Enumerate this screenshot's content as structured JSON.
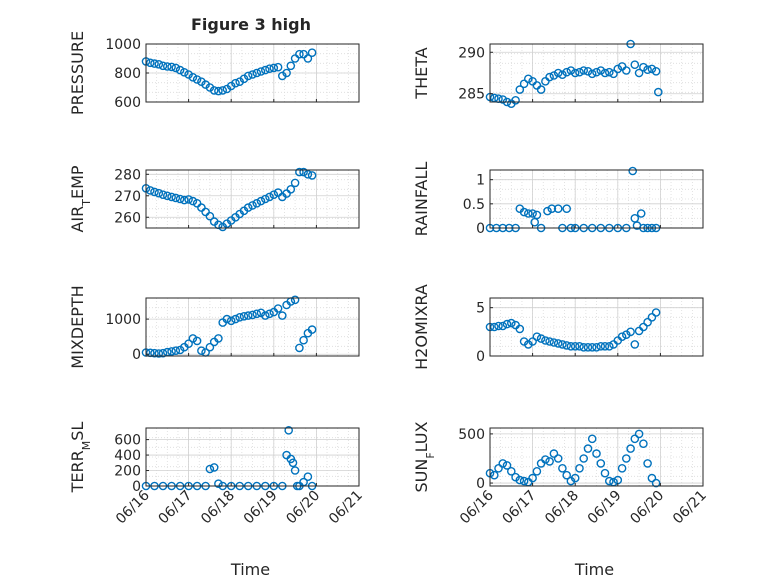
{
  "figure": {
    "title": "Figure 3 high",
    "xlabel": "Time",
    "x_tick_labels": [
      "06/16",
      "06/17",
      "06/18",
      "06/19",
      "06/20",
      "06/21"
    ]
  },
  "chart_data": [
    {
      "type": "scatter",
      "ylabel": "PRESSURE",
      "xlim": [
        0,
        5
      ],
      "ylim": [
        600,
        1000
      ],
      "yticks": [
        600,
        800,
        1000
      ],
      "grid": true,
      "marker_color": "#0072BD",
      "x": [
        0.0,
        0.1,
        0.2,
        0.3,
        0.4,
        0.5,
        0.6,
        0.7,
        0.8,
        0.9,
        1.0,
        1.1,
        1.2,
        1.3,
        1.4,
        1.5,
        1.6,
        1.7,
        1.8,
        1.9,
        2.0,
        2.1,
        2.2,
        2.3,
        2.4,
        2.5,
        2.6,
        2.7,
        2.8,
        2.9,
        3.0,
        3.1,
        3.2,
        3.3,
        3.4,
        3.5,
        3.6,
        3.7,
        3.8,
        3.9
      ],
      "y": [
        880,
        870,
        865,
        860,
        850,
        845,
        842,
        835,
        820,
        805,
        790,
        770,
        755,
        740,
        720,
        700,
        680,
        675,
        680,
        690,
        710,
        730,
        740,
        760,
        780,
        790,
        800,
        810,
        820,
        830,
        835,
        840,
        780,
        800,
        850,
        900,
        930,
        930,
        900,
        940
      ]
    },
    {
      "type": "scatter",
      "ylabel": "THETA",
      "xlim": [
        0,
        5
      ],
      "ylim": [
        284,
        291
      ],
      "yticks": [
        285,
        290
      ],
      "grid": true,
      "marker_color": "#0072BD",
      "x": [
        0.0,
        0.1,
        0.2,
        0.3,
        0.4,
        0.5,
        0.6,
        0.7,
        0.8,
        0.9,
        1.0,
        1.1,
        1.2,
        1.3,
        1.4,
        1.5,
        1.6,
        1.7,
        1.8,
        1.9,
        2.0,
        2.1,
        2.2,
        2.3,
        2.4,
        2.5,
        2.6,
        2.7,
        2.8,
        2.9,
        3.0,
        3.1,
        3.2,
        3.3,
        3.4,
        3.5,
        3.6,
        3.7,
        3.8,
        3.9,
        3.95
      ],
      "y": [
        284.6,
        284.5,
        284.4,
        284.3,
        284.0,
        283.8,
        284.2,
        285.5,
        286.2,
        286.8,
        286.5,
        286.0,
        285.5,
        286.5,
        287.0,
        287.2,
        287.5,
        287.3,
        287.6,
        287.8,
        287.5,
        287.6,
        287.8,
        287.7,
        287.4,
        287.6,
        287.8,
        287.5,
        287.6,
        287.4,
        288.0,
        288.3,
        287.8,
        291.0,
        288.5,
        287.5,
        288.2,
        287.9,
        288.0,
        287.7,
        285.2
      ]
    },
    {
      "type": "scatter",
      "ylabel": "AIR_TEMP",
      "xlim": [
        0,
        5
      ],
      "ylim": [
        255,
        282
      ],
      "yticks": [
        260,
        270,
        280
      ],
      "grid": true,
      "marker_color": "#0072BD",
      "x": [
        0.0,
        0.1,
        0.2,
        0.3,
        0.4,
        0.5,
        0.6,
        0.7,
        0.8,
        0.9,
        1.0,
        1.1,
        1.2,
        1.3,
        1.4,
        1.5,
        1.6,
        1.7,
        1.8,
        1.9,
        2.0,
        2.1,
        2.2,
        2.3,
        2.4,
        2.5,
        2.6,
        2.7,
        2.8,
        2.9,
        3.0,
        3.1,
        3.2,
        3.3,
        3.4,
        3.5,
        3.6,
        3.7,
        3.8,
        3.9
      ],
      "y": [
        273.5,
        272.5,
        271.8,
        271.2,
        270.5,
        270.0,
        269.5,
        269.0,
        268.5,
        268.0,
        268.3,
        267.5,
        266.5,
        264.5,
        262.5,
        260.5,
        258.0,
        256.5,
        255.5,
        257.0,
        258.5,
        260.0,
        261.5,
        263.0,
        264.5,
        265.5,
        266.5,
        267.5,
        268.5,
        269.5,
        270.5,
        271.5,
        269.5,
        271.0,
        273.0,
        276.0,
        281.0,
        281.0,
        280.0,
        279.5
      ]
    },
    {
      "type": "scatter",
      "ylabel": "RAINFALL",
      "xlim": [
        0,
        5
      ],
      "ylim": [
        0,
        1.2
      ],
      "yticks": [
        0,
        0.5,
        1
      ],
      "grid": true,
      "marker_color": "#0072BD",
      "x": [
        0.0,
        0.15,
        0.3,
        0.45,
        0.6,
        0.7,
        0.8,
        0.9,
        1.0,
        1.05,
        1.1,
        1.2,
        1.35,
        1.45,
        1.6,
        1.7,
        1.8,
        1.9,
        2.0,
        2.2,
        2.4,
        2.6,
        2.8,
        3.0,
        3.2,
        3.35,
        3.4,
        3.45,
        3.55,
        3.6,
        3.7,
        3.8,
        3.9
      ],
      "y": [
        0,
        0,
        0,
        0,
        0,
        0.4,
        0.33,
        0.3,
        0.3,
        0.12,
        0.27,
        0,
        0.35,
        0.4,
        0.4,
        0,
        0.4,
        0,
        0,
        0,
        0,
        0,
        0,
        0,
        0,
        1.18,
        0.2,
        0.05,
        0.3,
        0,
        0,
        0,
        0
      ]
    },
    {
      "type": "scatter",
      "ylabel": "MIXDEPTH",
      "xlim": [
        0,
        5
      ],
      "ylim": [
        -50,
        1600
      ],
      "yticks": [
        0,
        1000
      ],
      "grid": true,
      "marker_color": "#0072BD",
      "x": [
        0.0,
        0.1,
        0.2,
        0.3,
        0.4,
        0.5,
        0.6,
        0.7,
        0.8,
        0.9,
        1.0,
        1.1,
        1.2,
        1.3,
        1.4,
        1.5,
        1.6,
        1.7,
        1.8,
        1.9,
        2.0,
        2.1,
        2.2,
        2.3,
        2.4,
        2.5,
        2.6,
        2.7,
        2.8,
        2.9,
        3.0,
        3.1,
        3.2,
        3.3,
        3.4,
        3.5,
        3.6,
        3.7,
        3.8,
        3.9
      ],
      "y": [
        50,
        40,
        30,
        20,
        30,
        60,
        80,
        100,
        120,
        200,
        300,
        450,
        380,
        100,
        50,
        200,
        350,
        450,
        900,
        1000,
        950,
        1000,
        1050,
        1080,
        1100,
        1120,
        1150,
        1180,
        1100,
        1150,
        1200,
        1300,
        1100,
        1400,
        1500,
        1550,
        180,
        400,
        600,
        700
      ]
    },
    {
      "type": "scatter",
      "ylabel": "H2OMIXRA",
      "xlim": [
        0,
        5
      ],
      "ylim": [
        0,
        6
      ],
      "yticks": [
        0,
        5
      ],
      "grid": true,
      "marker_color": "#0072BD",
      "x": [
        0.0,
        0.1,
        0.2,
        0.3,
        0.4,
        0.5,
        0.6,
        0.7,
        0.8,
        0.9,
        1.0,
        1.1,
        1.2,
        1.3,
        1.4,
        1.5,
        1.6,
        1.7,
        1.8,
        1.9,
        2.0,
        2.1,
        2.2,
        2.3,
        2.4,
        2.5,
        2.6,
        2.7,
        2.8,
        2.9,
        3.0,
        3.1,
        3.2,
        3.3,
        3.4,
        3.5,
        3.6,
        3.7,
        3.8,
        3.9
      ],
      "y": [
        3.0,
        3.0,
        3.1,
        3.1,
        3.3,
        3.4,
        3.2,
        2.8,
        1.5,
        1.2,
        1.5,
        2.0,
        1.8,
        1.6,
        1.5,
        1.4,
        1.3,
        1.2,
        1.1,
        1.0,
        1.0,
        1.0,
        0.9,
        0.9,
        0.9,
        0.9,
        1.0,
        1.0,
        1.0,
        1.2,
        1.6,
        2.0,
        2.2,
        2.5,
        1.2,
        2.6,
        3.0,
        3.5,
        4.0,
        4.5
      ]
    },
    {
      "type": "scatter",
      "ylabel": "TERR_MSL",
      "xlim": [
        0,
        5
      ],
      "ylim": [
        0,
        750
      ],
      "yticks": [
        0,
        200,
        400,
        600
      ],
      "grid": true,
      "marker_color": "#0072BD",
      "x": [
        0.0,
        0.2,
        0.4,
        0.6,
        0.8,
        1.0,
        1.2,
        1.4,
        1.5,
        1.6,
        1.7,
        1.8,
        2.0,
        2.2,
        2.4,
        2.6,
        2.8,
        3.0,
        3.2,
        3.3,
        3.35,
        3.4,
        3.45,
        3.5,
        3.55,
        3.6,
        3.7,
        3.8,
        3.9
      ],
      "y": [
        0,
        0,
        0,
        0,
        0,
        0,
        0,
        0,
        220,
        240,
        30,
        0,
        0,
        0,
        0,
        0,
        0,
        0,
        0,
        400,
        720,
        350,
        300,
        200,
        0,
        0,
        50,
        120,
        0
      ]
    },
    {
      "type": "scatter",
      "ylabel": "SUN_FLUX",
      "xlim": [
        0,
        5
      ],
      "ylim": [
        -30,
        560
      ],
      "yticks": [
        0,
        500
      ],
      "grid": true,
      "marker_color": "#0072BD",
      "x": [
        0.0,
        0.1,
        0.2,
        0.3,
        0.4,
        0.5,
        0.6,
        0.7,
        0.8,
        0.9,
        1.0,
        1.1,
        1.2,
        1.3,
        1.4,
        1.5,
        1.6,
        1.7,
        1.8,
        1.9,
        2.0,
        2.1,
        2.2,
        2.3,
        2.4,
        2.5,
        2.6,
        2.7,
        2.8,
        2.9,
        3.0,
        3.1,
        3.2,
        3.3,
        3.4,
        3.5,
        3.6,
        3.7,
        3.8,
        3.9
      ],
      "y": [
        100,
        80,
        150,
        200,
        180,
        120,
        60,
        30,
        20,
        10,
        50,
        120,
        200,
        240,
        220,
        300,
        250,
        150,
        80,
        20,
        50,
        150,
        250,
        350,
        450,
        300,
        200,
        100,
        20,
        10,
        30,
        150,
        250,
        350,
        450,
        500,
        400,
        200,
        50,
        0
      ]
    }
  ]
}
